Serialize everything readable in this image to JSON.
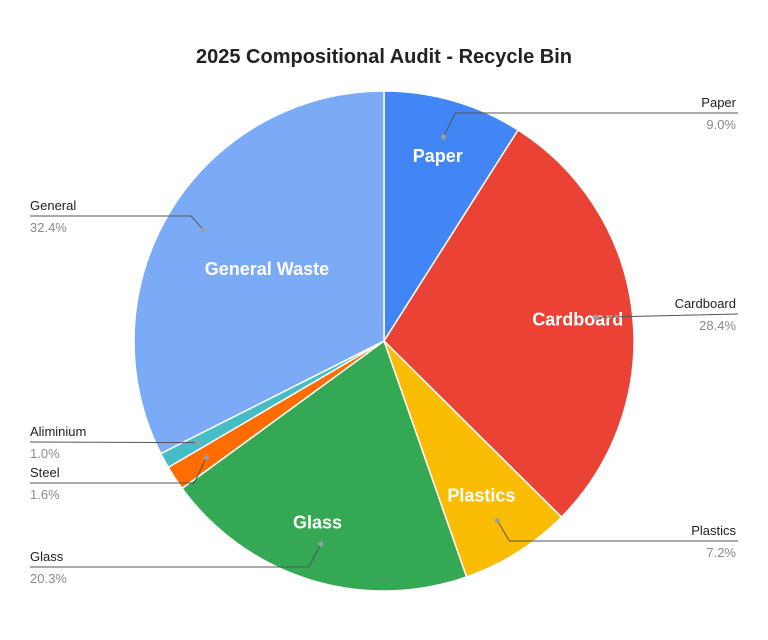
{
  "chart_data": {
    "type": "pie",
    "title": "2025 Compositional Audit - Recycle Bin",
    "slices": [
      {
        "name": "Paper",
        "callout_name": "Paper",
        "value": 9.0,
        "percent_label": "9.0%",
        "color": "#4285f4",
        "inner_label": "Paper"
      },
      {
        "name": "Cardboard",
        "callout_name": "Cardboard",
        "value": 28.4,
        "percent_label": "28.4%",
        "color": "#ea4335",
        "inner_label": "Cardboard"
      },
      {
        "name": "Plastics",
        "callout_name": "Plastics",
        "value": 7.2,
        "percent_label": "7.2%",
        "color": "#fbbc04",
        "inner_label": "Plastics"
      },
      {
        "name": "Glass",
        "callout_name": "Glass",
        "value": 20.3,
        "percent_label": "20.3%",
        "color": "#34a853",
        "inner_label": "Glass"
      },
      {
        "name": "Steel",
        "callout_name": "Steel",
        "value": 1.6,
        "percent_label": "1.6%",
        "color": "#ff6d01",
        "inner_label": ""
      },
      {
        "name": "Aliminium",
        "callout_name": "Aliminium",
        "value": 1.0,
        "percent_label": "1.0%",
        "color": "#46bdc6",
        "inner_label": ""
      },
      {
        "name": "General Waste",
        "callout_name": "General",
        "value": 32.4,
        "percent_label": "32.4%",
        "color": "#7baaf7",
        "inner_label": "General Waste"
      }
    ],
    "legend": "none",
    "label_style": "callouts"
  }
}
